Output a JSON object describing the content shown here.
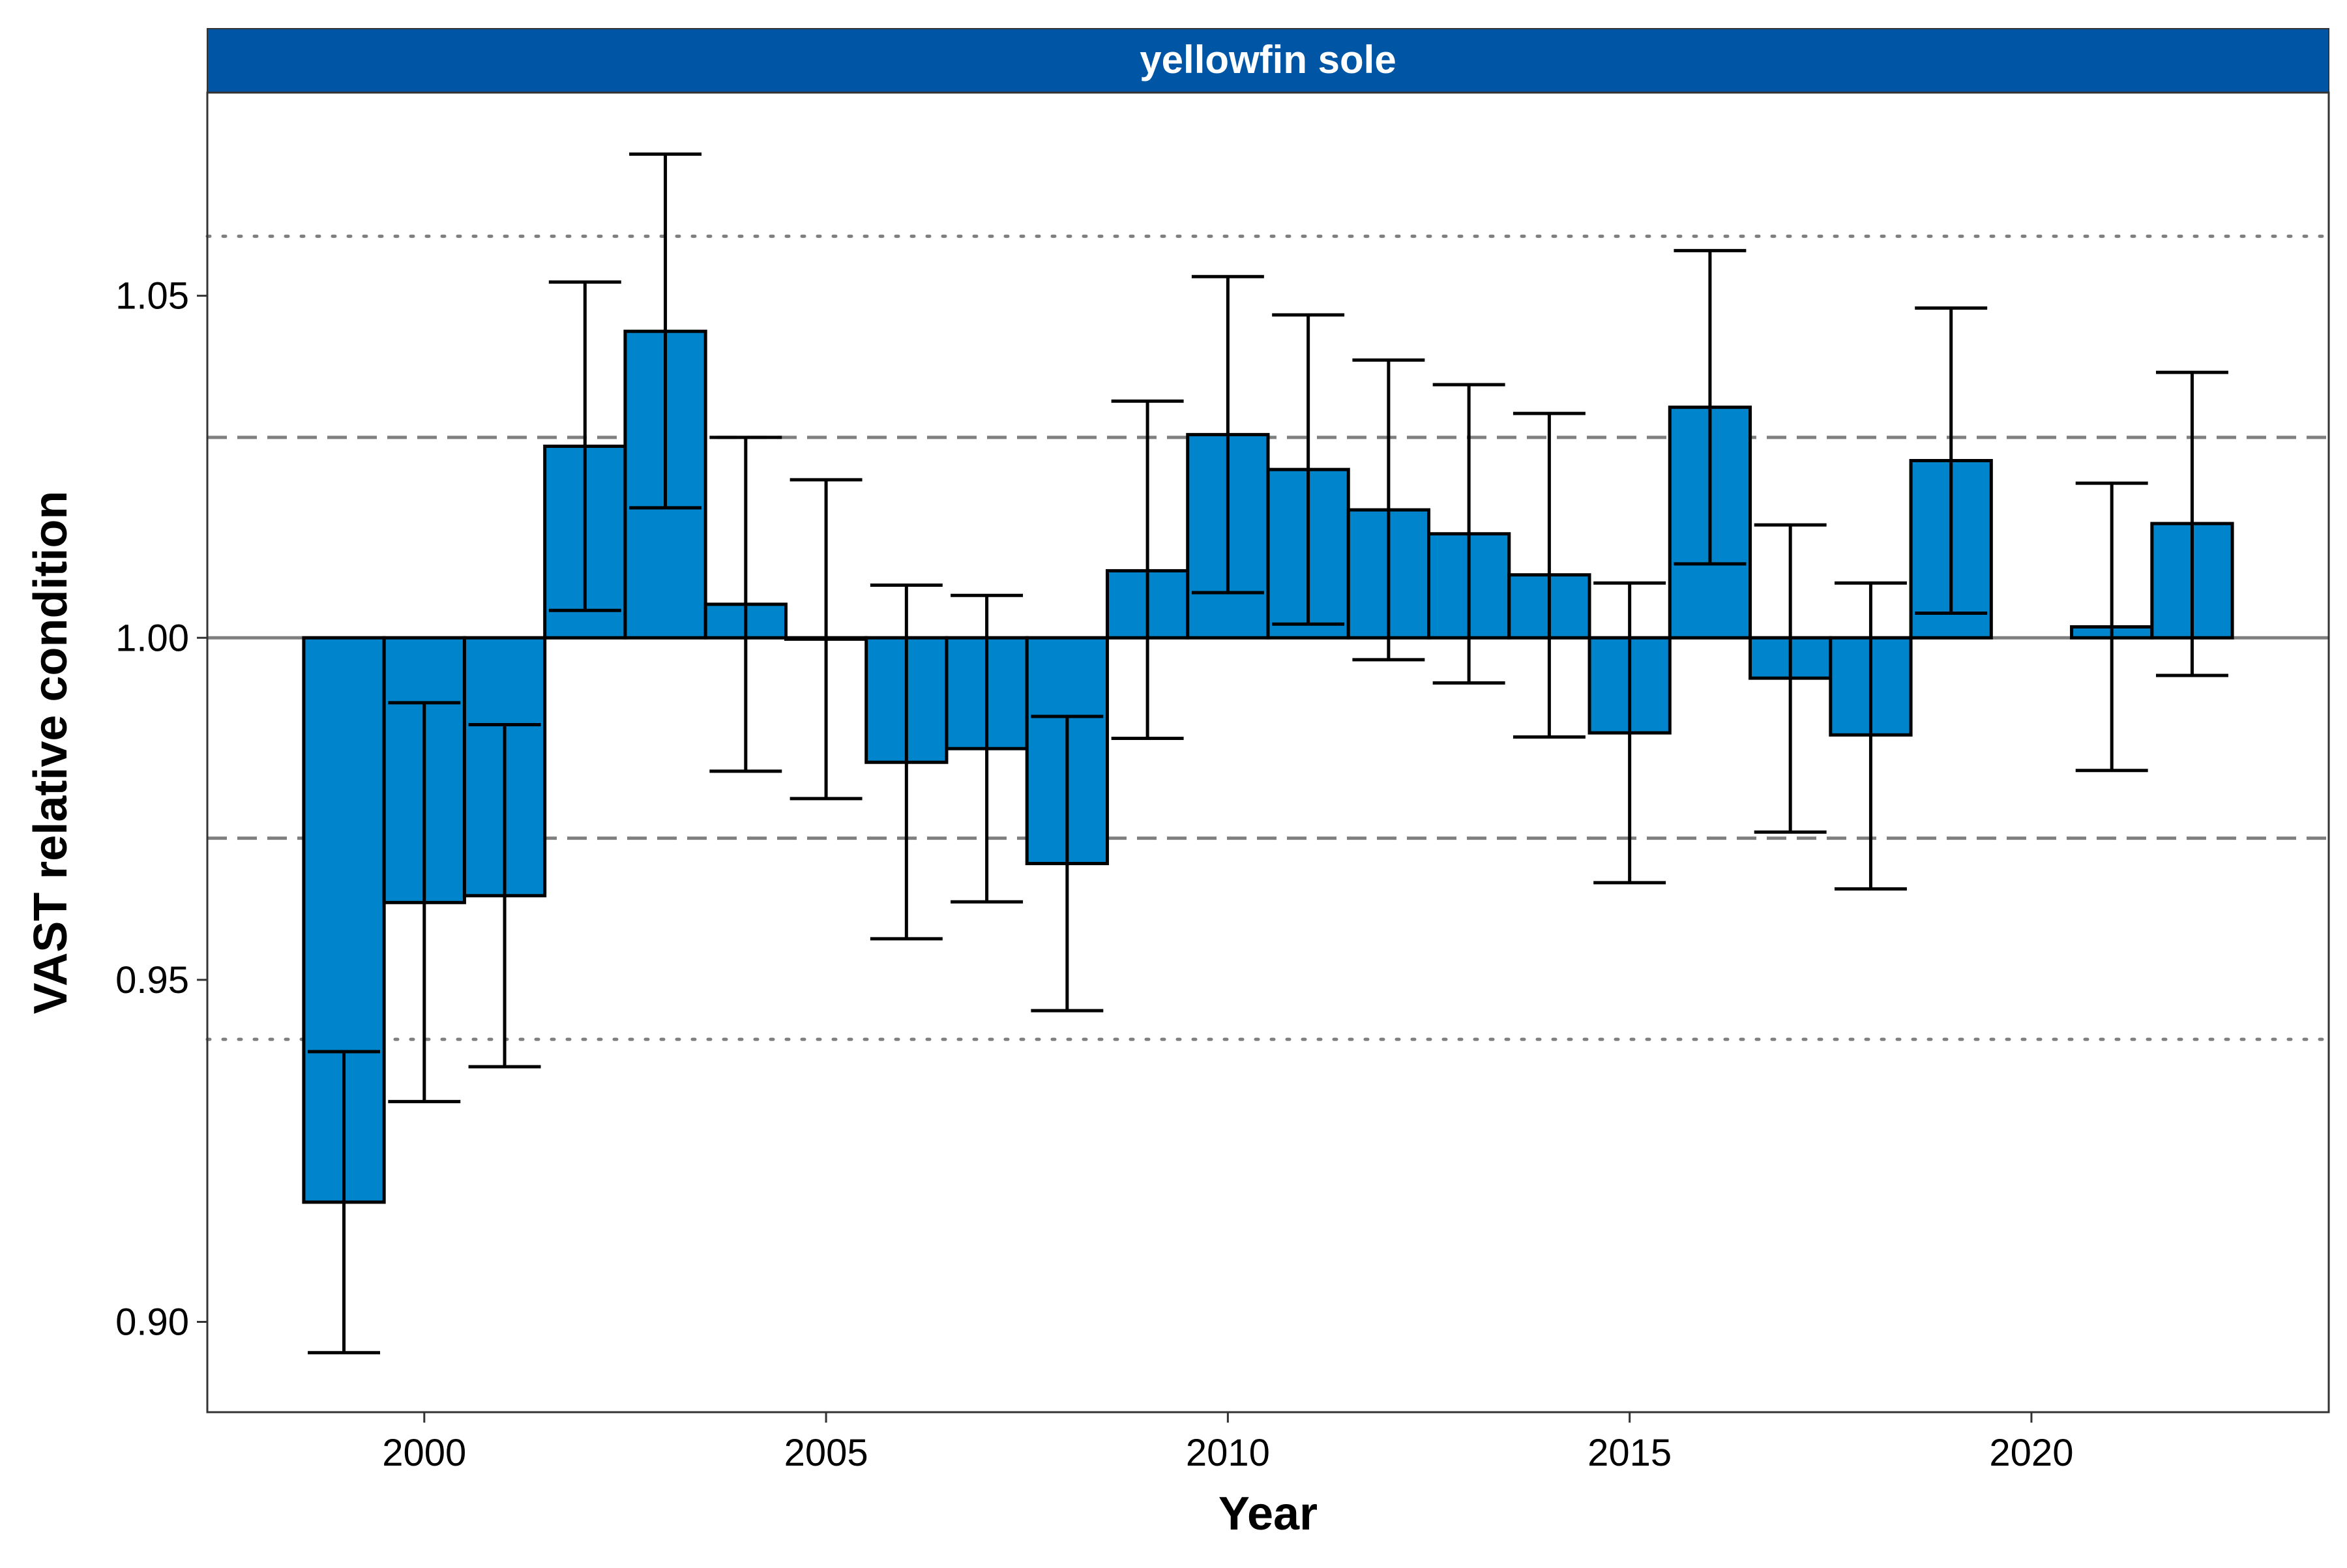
{
  "chart_data": {
    "type": "bar",
    "panel_title": "yellowfin sole",
    "xlabel": "Year",
    "ylabel": "VAST relative condition",
    "xlim": [
      1997.3,
      2023.7
    ],
    "ylim": [
      0.8868,
      1.0797
    ],
    "baseline": 1.0,
    "x_ticks": [
      2000,
      2005,
      2010,
      2015,
      2020
    ],
    "y_ticks": [
      0.9,
      0.95,
      1.0,
      1.05
    ],
    "y_tick_labels": [
      "0.90",
      "0.95",
      "1.00",
      "1.05"
    ],
    "reference_lines": [
      {
        "value": 1.0,
        "style": "solid"
      },
      {
        "value": 1.0293,
        "style": "dashed"
      },
      {
        "value": 0.9707,
        "style": "dashed"
      },
      {
        "value": 1.0587,
        "style": "dotted"
      },
      {
        "value": 0.9413,
        "style": "dotted"
      }
    ],
    "bar_color": "#0085CC",
    "strip_color": "#0055A5",
    "grid": false,
    "legend": "none",
    "points": [
      {
        "year": 1999,
        "value": 0.9175,
        "lower": 0.8955,
        "upper": 0.9395
      },
      {
        "year": 2000,
        "value": 0.9613,
        "lower": 0.9322,
        "upper": 0.9905
      },
      {
        "year": 2001,
        "value": 0.9623,
        "lower": 0.9373,
        "upper": 0.9873
      },
      {
        "year": 2002,
        "value": 1.028,
        "lower": 1.004,
        "upper": 1.052
      },
      {
        "year": 2003,
        "value": 1.0448,
        "lower": 1.019,
        "upper": 1.0707
      },
      {
        "year": 2004,
        "value": 1.0049,
        "lower": 0.9805,
        "upper": 1.0293
      },
      {
        "year": 2005,
        "value": 0.9998,
        "lower": 0.9765,
        "upper": 1.0231
      },
      {
        "year": 2006,
        "value": 0.9818,
        "lower": 0.956,
        "upper": 1.0077
      },
      {
        "year": 2007,
        "value": 0.9838,
        "lower": 0.9614,
        "upper": 1.0062
      },
      {
        "year": 2008,
        "value": 0.967,
        "lower": 0.9455,
        "upper": 0.9885
      },
      {
        "year": 2009,
        "value": 1.0098,
        "lower": 0.9853,
        "upper": 1.0346
      },
      {
        "year": 2010,
        "value": 1.0297,
        "lower": 1.0066,
        "upper": 1.0528
      },
      {
        "year": 2011,
        "value": 1.0246,
        "lower": 1.002,
        "upper": 1.0472
      },
      {
        "year": 2012,
        "value": 1.0187,
        "lower": 0.9968,
        "upper": 1.0406
      },
      {
        "year": 2013,
        "value": 1.0152,
        "lower": 0.9934,
        "upper": 1.037
      },
      {
        "year": 2014,
        "value": 1.0092,
        "lower": 0.9855,
        "upper": 1.0328
      },
      {
        "year": 2015,
        "value": 0.9861,
        "lower": 0.9642,
        "upper": 1.008
      },
      {
        "year": 2016,
        "value": 1.0337,
        "lower": 1.0108,
        "upper": 1.0566
      },
      {
        "year": 2017,
        "value": 0.9941,
        "lower": 0.9716,
        "upper": 1.0165
      },
      {
        "year": 2018,
        "value": 0.9858,
        "lower": 0.9633,
        "upper": 1.008
      },
      {
        "year": 2019,
        "value": 1.0259,
        "lower": 1.0036,
        "upper": 1.0482
      },
      {
        "year": 2021,
        "value": 1.0016,
        "lower": 0.9806,
        "upper": 1.0226
      },
      {
        "year": 2022,
        "value": 1.0167,
        "lower": 0.9945,
        "upper": 1.0388
      }
    ]
  }
}
